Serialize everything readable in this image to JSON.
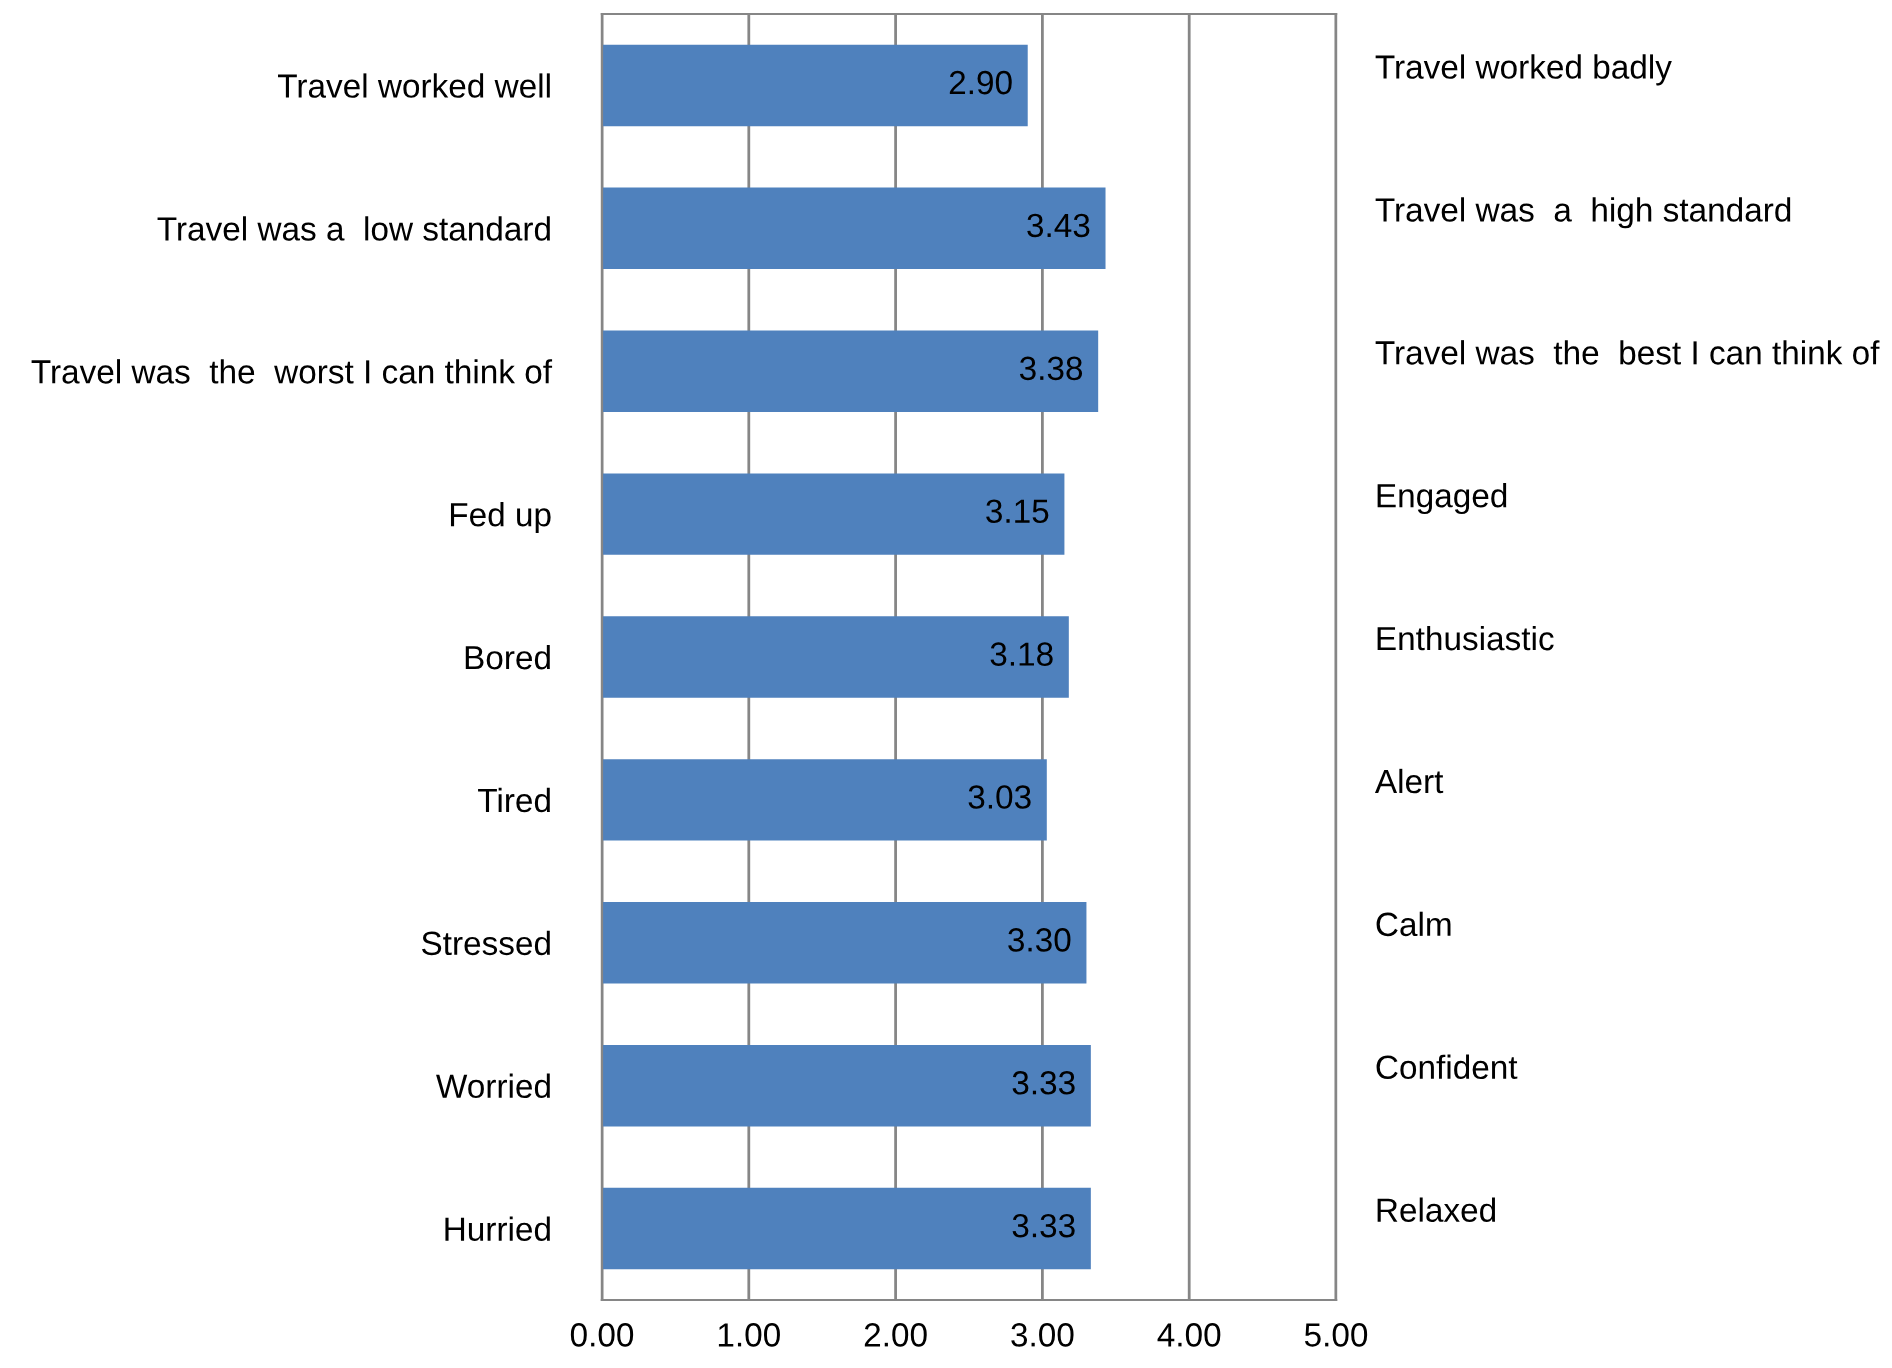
{
  "chart_data": {
    "type": "bar",
    "orientation": "horizontal",
    "categories": [
      "Travel worked well",
      "Travel was a  low standard",
      "Travel was  the  worst I can think of",
      "Fed up",
      "Bored",
      "Tired",
      "Stressed",
      "Worried",
      "Hurried"
    ],
    "y2_categories": [
      "Travel worked badly",
      "Travel was  a  high standard",
      "Travel was  the  best I can think of",
      "Engaged",
      "Enthusiastic",
      "Alert",
      "Calm",
      "Confident",
      "Relaxed"
    ],
    "values": [
      2.9,
      3.43,
      3.38,
      3.15,
      3.18,
      3.03,
      3.3,
      3.33,
      3.33
    ],
    "value_labels": [
      "2.90",
      "3.43",
      "3.38",
      "3.15",
      "3.18",
      "3.03",
      "3.30",
      "3.33",
      "3.33"
    ],
    "color": "#4f81bd",
    "xlim": [
      0,
      5
    ],
    "xticks": [
      {
        "value": 0,
        "label": "0.00"
      },
      {
        "value": 1,
        "label": "1.00"
      },
      {
        "value": 2,
        "label": "2.00"
      },
      {
        "value": 3,
        "label": "3.00"
      },
      {
        "value": 4,
        "label": "4.00"
      },
      {
        "value": 5,
        "label": "5.00"
      }
    ],
    "grid": "x",
    "legend": false
  }
}
